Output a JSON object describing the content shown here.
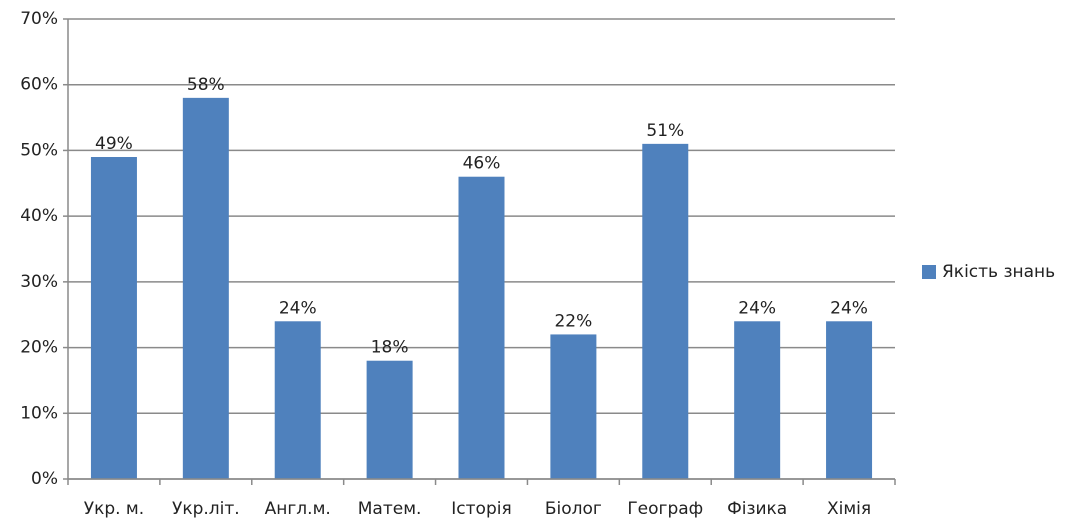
{
  "chart_data": {
    "type": "bar",
    "categories": [
      "Укр. м.",
      "Укр.літ.",
      "Англ.м.",
      "Матем.",
      "Історія",
      "Біолог",
      "Географ",
      "Фізика",
      "Хімія"
    ],
    "series": [
      {
        "name": "Якість знань",
        "color": "#4f81bd",
        "values": [
          49,
          58,
          24,
          18,
          46,
          22,
          51,
          24,
          24
        ],
        "value_labels": [
          "49%",
          "58%",
          "24%",
          "18%",
          "46%",
          "22%",
          "51%",
          "24%",
          "24%"
        ]
      }
    ],
    "ylim": [
      0,
      70
    ],
    "yticks": [
      {
        "value": 0,
        "label": "0%"
      },
      {
        "value": 10,
        "label": "10%"
      },
      {
        "value": 20,
        "label": "20%"
      },
      {
        "value": 30,
        "label": "30%"
      },
      {
        "value": 40,
        "label": "40%"
      },
      {
        "value": 50,
        "label": "50%"
      },
      {
        "value": 60,
        "label": "60%"
      },
      {
        "value": 70,
        "label": "70%"
      }
    ],
    "grid": true,
    "legend": "right"
  }
}
